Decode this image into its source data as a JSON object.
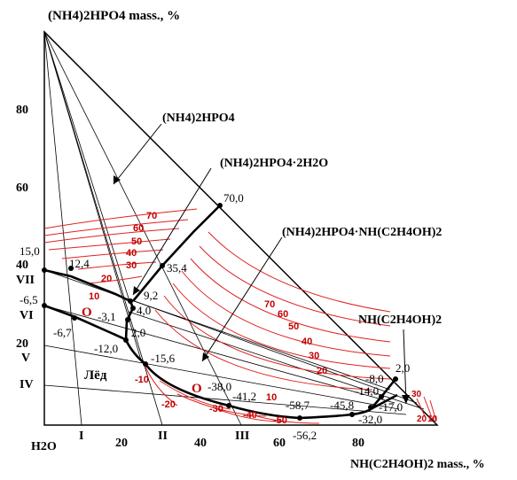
{
  "colors": {
    "isotherm": "#e02020",
    "isotherm_label": "#c00000",
    "boundary": "#000000",
    "ray": "#000000"
  },
  "labels": {
    "y_axis_title": "(NH4)2HPO4 mass., %",
    "x_axis_title": "NH(C2H4OH)2 mass., %",
    "origin": "H2O",
    "field_phosphate": "(NH4)2HPO4",
    "field_dihydrate": "(NH4)2HPO4·2H2O",
    "field_compound": "(NH4)2HPO4·NH(C2H4OH)2",
    "field_amine": "NH(C2H4OH)2",
    "field_ice": "Лёд"
  },
  "left_ticks": [
    "80",
    "60",
    "40",
    "20"
  ],
  "bottom_ticks": [
    "20",
    "40",
    "60",
    "80"
  ],
  "roman_bottom": [
    "I",
    "II",
    "III"
  ],
  "roman_left": [
    "VII",
    "VI",
    "V",
    "IV"
  ],
  "eutonic_marks": [
    "O",
    "O"
  ],
  "temperature_points": [
    "15,0",
    "12,4",
    "-6,5",
    "-6,7",
    "70,0",
    "35,4",
    "9,2",
    "-3,1",
    "4,0",
    "2,0",
    "-12,0",
    "-15,6",
    "-38,0",
    "-41,2",
    "-58,7",
    "-56,2",
    "-45,8",
    "-32,0",
    "-17,0",
    "-14,0",
    "-8,0",
    "2,0"
  ],
  "isotherm_labels": [
    "70",
    "60",
    "50",
    "40",
    "30",
    "20",
    "10",
    "70",
    "60",
    "50",
    "40",
    "30",
    "20",
    "10",
    "-10",
    "-20",
    "-30",
    "-40",
    "-50",
    "30",
    "20",
    "10"
  ]
}
